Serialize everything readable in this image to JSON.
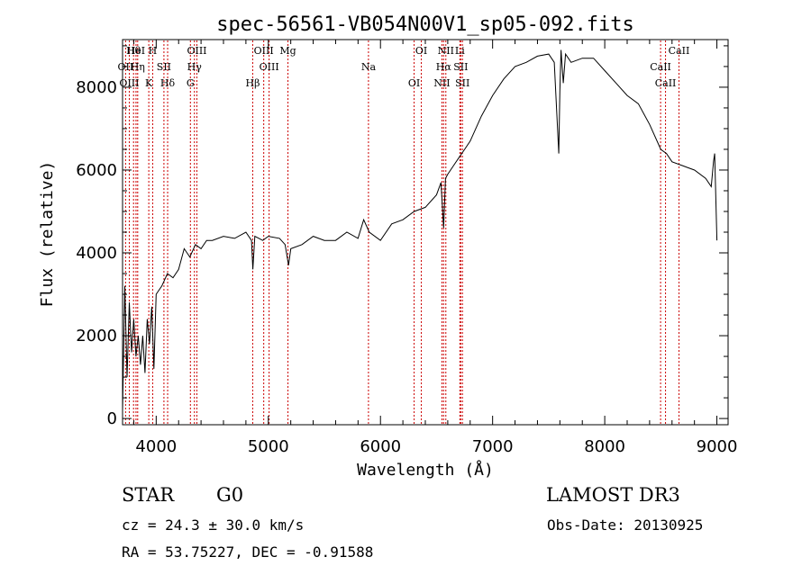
{
  "chart_data": {
    "type": "line",
    "title": "spec-56561-VB054N00V1_sp05-092.fits",
    "xlabel": "Wavelength (Å)",
    "ylabel": "Flux (relative)",
    "xlim": [
      3700,
      9100
    ],
    "ylim": [
      -150,
      9150
    ],
    "xticks": [
      4000,
      5000,
      6000,
      7000,
      8000,
      9000
    ],
    "yticks": [
      0,
      2000,
      4000,
      6000,
      8000
    ],
    "line_color": "#000000",
    "marker_color": "#cc0000",
    "series": [
      {
        "name": "flux",
        "x": [
          3700,
          3720,
          3740,
          3760,
          3780,
          3800,
          3820,
          3840,
          3860,
          3880,
          3900,
          3920,
          3940,
          3960,
          3980,
          4000,
          4050,
          4100,
          4150,
          4200,
          4250,
          4300,
          4350,
          4400,
          4450,
          4500,
          4600,
          4700,
          4800,
          4850,
          4862,
          4880,
          4950,
          5000,
          5100,
          5150,
          5180,
          5200,
          5300,
          5400,
          5500,
          5600,
          5700,
          5800,
          5850,
          5900,
          6000,
          6100,
          6200,
          6300,
          6400,
          6500,
          6540,
          6563,
          6580,
          6600,
          6650,
          6700,
          6750,
          6800,
          6900,
          7000,
          7100,
          7200,
          7300,
          7400,
          7500,
          7550,
          7590,
          7600,
          7610,
          7630,
          7650,
          7700,
          7800,
          7900,
          8000,
          8100,
          8200,
          8300,
          8400,
          8500,
          8550,
          8600,
          8700,
          8800,
          8900,
          8950,
          8970,
          8980,
          9000
        ],
        "y": [
          200,
          3200,
          1000,
          2800,
          1600,
          2400,
          1500,
          2000,
          1300,
          2000,
          1100,
          2400,
          1800,
          2700,
          1200,
          3000,
          3200,
          3500,
          3400,
          3600,
          4100,
          3900,
          4200,
          4100,
          4300,
          4300,
          4400,
          4350,
          4500,
          4300,
          3600,
          4400,
          4300,
          4400,
          4350,
          4200,
          3700,
          4100,
          4200,
          4400,
          4300,
          4300,
          4500,
          4350,
          4800,
          4500,
          4300,
          4700,
          4800,
          5000,
          5100,
          5400,
          5700,
          4600,
          5800,
          5900,
          6100,
          6300,
          6500,
          6700,
          7300,
          7800,
          8200,
          8500,
          8600,
          8750,
          8800,
          8600,
          6400,
          7900,
          8900,
          8100,
          8800,
          8600,
          8700,
          8700,
          8400,
          8100,
          7800,
          7600,
          7100,
          6500,
          6400,
          6200,
          6100,
          6000,
          5800,
          5600,
          6200,
          6400,
          4300
        ]
      }
    ],
    "lines": [
      {
        "name": "Hθ",
        "wavelength": 3798
      },
      {
        "name": "OII",
        "wavelength": 3727
      },
      {
        "name": "OIII",
        "wavelength": 3760
      },
      {
        "name": "HeI",
        "wavelength": 3820
      },
      {
        "name": "Hη",
        "wavelength": 3835
      },
      {
        "name": "K",
        "wavelength": 3934
      },
      {
        "name": "H",
        "wavelength": 3969
      },
      {
        "name": "SII",
        "wavelength": 4069
      },
      {
        "name": "Hδ",
        "wavelength": 4102
      },
      {
        "name": "OIII",
        "wavelength": 4363
      },
      {
        "name": "Hγ",
        "wavelength": 4341
      },
      {
        "name": "G",
        "wavelength": 4305
      },
      {
        "name": "OIII",
        "wavelength": 4959
      },
      {
        "name": "OIII",
        "wavelength": 5007
      },
      {
        "name": "Hβ",
        "wavelength": 4861
      },
      {
        "name": "Mg",
        "wavelength": 5175
      },
      {
        "name": "Na",
        "wavelength": 5893
      },
      {
        "name": "OI",
        "wavelength": 6300
      },
      {
        "name": "OI",
        "wavelength": 6364
      },
      {
        "name": "Hα",
        "wavelength": 6563
      },
      {
        "name": "NII",
        "wavelength": 6548
      },
      {
        "name": "NII",
        "wavelength": 6583
      },
      {
        "name": "SII",
        "wavelength": 6716
      },
      {
        "name": "SII",
        "wavelength": 6731
      },
      {
        "name": "Li",
        "wavelength": 6708
      },
      {
        "name": "CaII",
        "wavelength": 8498
      },
      {
        "name": "CaII",
        "wavelength": 8542
      },
      {
        "name": "CaII",
        "wavelength": 8662
      }
    ]
  },
  "info": {
    "class": "STAR",
    "subclass": "G0",
    "survey": "LAMOST DR3",
    "cz": "cz = 24.3 ± 30.0 km/s",
    "obs_date": "Obs-Date: 20130925",
    "coords": "RA =  53.75227, DEC =  -0.91588"
  }
}
